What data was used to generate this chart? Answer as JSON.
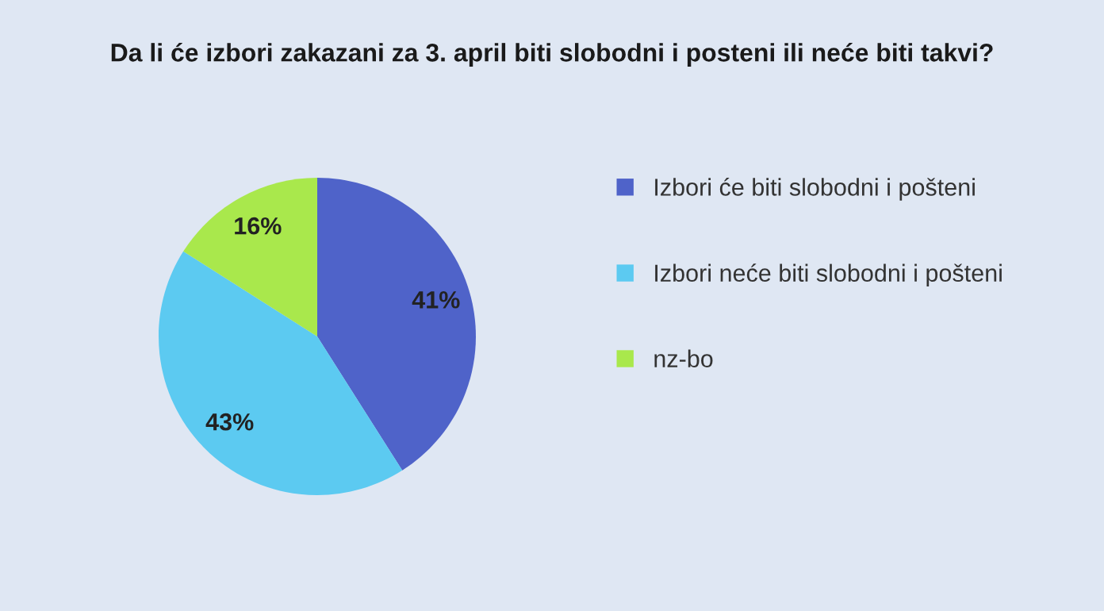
{
  "chart_data": {
    "type": "pie",
    "title": "Da li će izbori zakazani za 3. april biti slobodni i posteni ili neće biti takvi?",
    "categories": [
      "Izbori će biti slobodni i pošteni",
      "Izbori neće biti slobodni i pošteni",
      "nz-bo"
    ],
    "values": [
      41,
      43,
      16
    ],
    "colors": [
      "#4f63c9",
      "#5ccaf1",
      "#a9e84c"
    ],
    "value_labels": [
      "41%",
      "43%",
      "16%"
    ],
    "legend": "right"
  }
}
